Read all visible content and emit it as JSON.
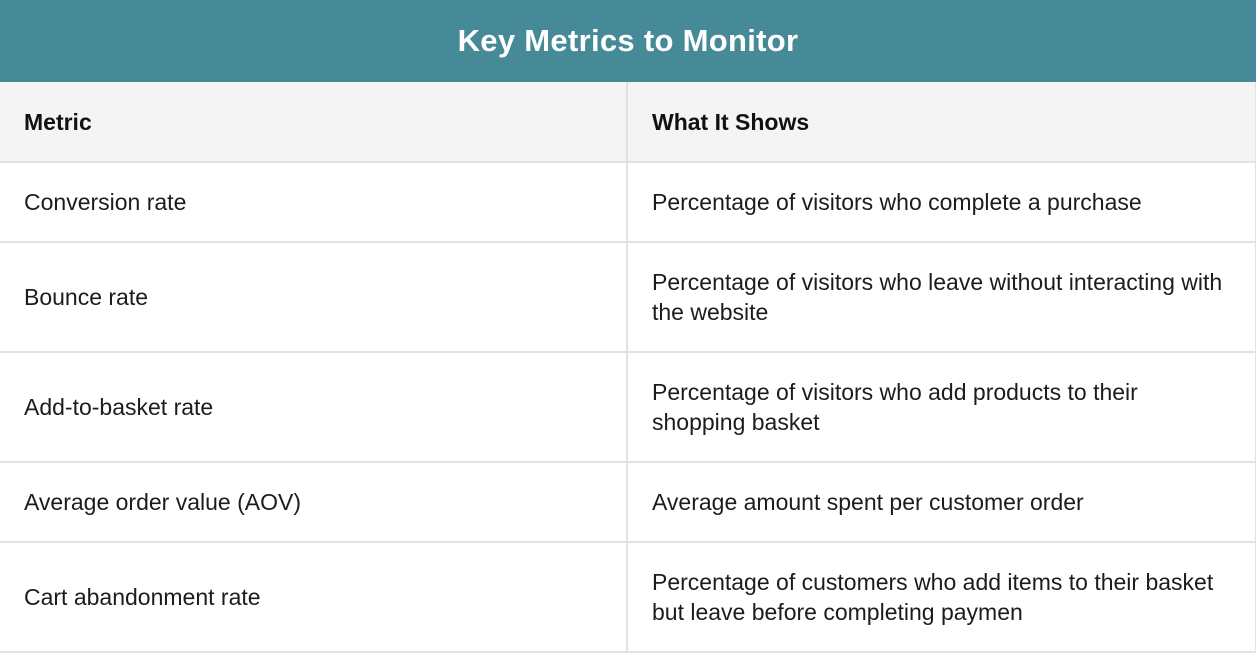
{
  "title": "Key Metrics to Monitor",
  "table": {
    "headers": [
      "Metric",
      "What It Shows"
    ],
    "rows": [
      {
        "metric": "Conversion rate",
        "description": "Percentage of visitors who complete a purchase"
      },
      {
        "metric": "Bounce rate",
        "description": "Percentage of visitors who leave without interacting with the website"
      },
      {
        "metric": "Add-to-basket rate",
        "description": "Percentage of visitors who add products to their shopping basket"
      },
      {
        "metric": "Average order value (AOV)",
        "description": "Average amount spent per customer order"
      },
      {
        "metric": "Cart abandonment rate",
        "description": "Percentage of customers who add items to their basket but leave before completing paymen"
      }
    ]
  },
  "colors": {
    "title_bar": "#468a97",
    "header_bg": "#f4f4f4",
    "grid": "#e2e2e2"
  }
}
